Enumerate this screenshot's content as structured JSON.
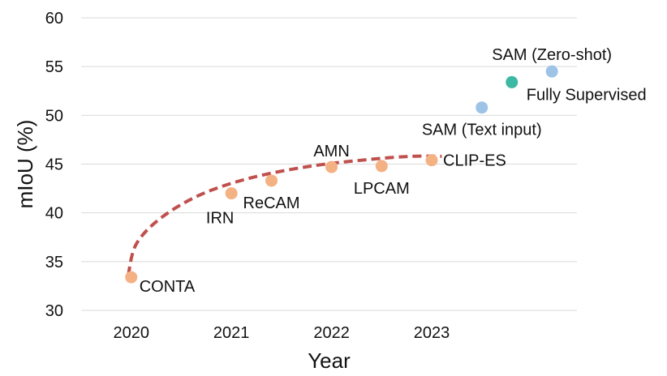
{
  "chart_data": {
    "type": "scatter",
    "title": "",
    "xlabel": "Year",
    "ylabel": "mIoU (%)",
    "xlim": [
      2019.5,
      2024.45
    ],
    "ylim": [
      30,
      60
    ],
    "xticks": [
      2020,
      2021,
      2022,
      2023
    ],
    "yticks": [
      30,
      35,
      40,
      45,
      50,
      55,
      60
    ],
    "grid": "horizontal",
    "colors": {
      "wsss": "#F4B183",
      "sam": "#9DC3E6",
      "supervised": "#3DB8A3",
      "trend": "#C0504D",
      "grid": "#d9d9d9"
    },
    "points": [
      {
        "name": "CONTA",
        "x": 2020.0,
        "y": 33.4,
        "group": "wsss",
        "label_pos": "lower-right"
      },
      {
        "name": "IRN",
        "x": 2021.0,
        "y": 42.0,
        "group": "wsss",
        "label_pos": "below-left"
      },
      {
        "name": "ReCAM",
        "x": 2021.4,
        "y": 43.3,
        "group": "wsss",
        "label_pos": "below"
      },
      {
        "name": "AMN",
        "x": 2022.0,
        "y": 44.7,
        "group": "wsss",
        "label_pos": "above-left"
      },
      {
        "name": "LPCAM",
        "x": 2022.5,
        "y": 44.8,
        "group": "wsss",
        "label_pos": "below"
      },
      {
        "name": "CLIP-ES",
        "x": 2023.0,
        "y": 45.4,
        "group": "wsss",
        "label_pos": "right"
      },
      {
        "name": "SAM (Text input)",
        "x": 2023.5,
        "y": 50.8,
        "group": "sam",
        "label_pos": "below"
      },
      {
        "name": "Fully Supervised",
        "x": 2023.8,
        "y": 53.4,
        "group": "supervised",
        "label_pos": "below-right"
      },
      {
        "name": "SAM (Zero-shot)",
        "x": 2024.2,
        "y": 54.5,
        "group": "sam",
        "label_pos": "above"
      }
    ],
    "trend": {
      "style": "dashed",
      "points": [
        [
          2019.97,
          33.6
        ],
        [
          2020.05,
          36.8
        ],
        [
          2020.3,
          39.5
        ],
        [
          2020.7,
          41.9
        ],
        [
          2021.2,
          43.6
        ],
        [
          2021.8,
          44.8
        ],
        [
          2022.4,
          45.5
        ],
        [
          2022.8,
          45.8
        ],
        [
          2023.1,
          45.8
        ]
      ]
    }
  }
}
